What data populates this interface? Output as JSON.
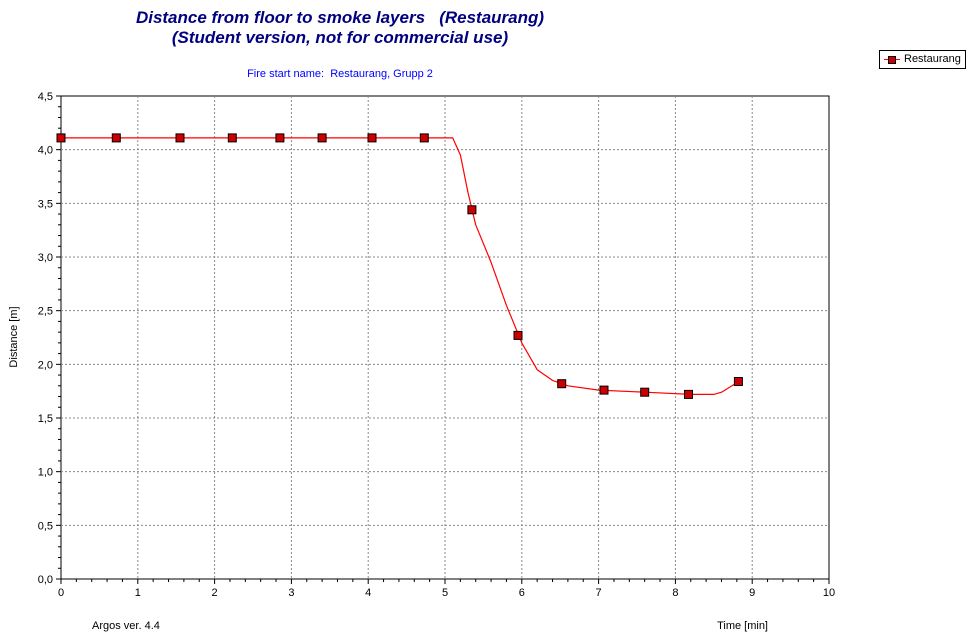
{
  "chart_data": {
    "type": "line",
    "title": "Distance from floor to smoke layers   (Restaurang)",
    "subtitle": "(Student version, not for commercial use)",
    "annotation": "Fire start name:  Restaurang, Grupp 2",
    "footer": "Argos ver. 4.4",
    "xlabel": "Time [min]",
    "ylabel": "Distance [m]",
    "xlim": [
      0,
      10
    ],
    "ylim": [
      0,
      4.5
    ],
    "xticks": [
      "0",
      "1",
      "2",
      "3",
      "4",
      "5",
      "6",
      "7",
      "8",
      "9",
      "10"
    ],
    "yticks": [
      "0,0",
      "0,5",
      "1,0",
      "1,5",
      "2,0",
      "2,5",
      "3,0",
      "3,5",
      "4,0",
      "4,5"
    ],
    "grid": true,
    "legend_position": "top-right",
    "colors": {
      "line": "#ff0000",
      "marker": "#cc0000",
      "title": "#000080",
      "annotation": "#0000ff"
    },
    "series": [
      {
        "name": "Restaurang",
        "curve_x": [
          0,
          5.1,
          5.2,
          5.3,
          5.4,
          5.6,
          5.8,
          6.0,
          6.2,
          6.4,
          6.6,
          7.0,
          7.6,
          8.2,
          8.5,
          8.6,
          8.85
        ],
        "curve_y": [
          4.11,
          4.11,
          3.95,
          3.6,
          3.3,
          2.95,
          2.55,
          2.2,
          1.95,
          1.85,
          1.8,
          1.76,
          1.74,
          1.72,
          1.72,
          1.74,
          1.85
        ],
        "marker_x": [
          0.0,
          0.72,
          1.55,
          2.23,
          2.85,
          3.4,
          4.05,
          4.73,
          5.35,
          5.95,
          6.52,
          7.07,
          7.6,
          8.17,
          8.82
        ],
        "marker_y": [
          4.11,
          4.11,
          4.11,
          4.11,
          4.11,
          4.11,
          4.11,
          4.11,
          3.44,
          2.27,
          1.82,
          1.76,
          1.74,
          1.72,
          1.84
        ]
      }
    ]
  }
}
